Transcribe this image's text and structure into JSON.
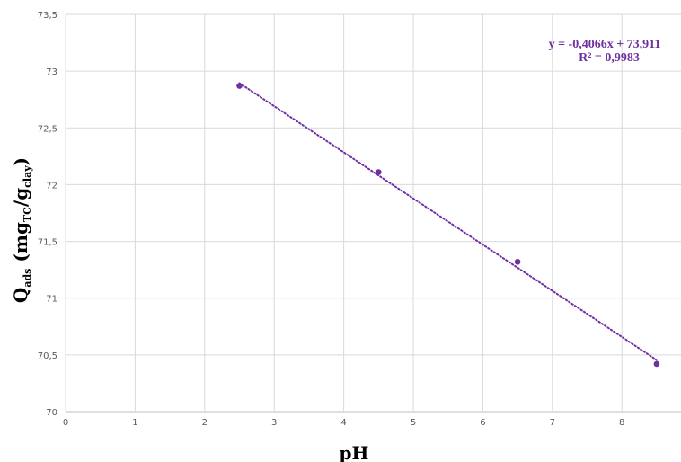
{
  "chart_data": {
    "type": "scatter",
    "title": "",
    "xlabel": "pH",
    "ylabel": {
      "main": "Q",
      "main_sub": "ads",
      "unit_open": " (mg",
      "unit_sub1": "TC",
      "unit_mid": "/g",
      "unit_sub2": "clay",
      "unit_close": ")"
    },
    "xlim": [
      0,
      8.85
    ],
    "ylim": [
      70,
      73.5
    ],
    "x_ticks": [
      "0",
      "1",
      "2",
      "3",
      "4",
      "5",
      "6",
      "7",
      "8"
    ],
    "y_ticks": [
      "70",
      "70,5",
      "71",
      "71,5",
      "72",
      "72,5",
      "73",
      "73,5"
    ],
    "grid": true,
    "series": [
      {
        "x": [
          2.5,
          4.5,
          6.5,
          8.5
        ],
        "y": [
          72.87,
          72.11,
          71.32,
          70.42
        ],
        "color": "#7030a0"
      }
    ],
    "trendline": {
      "type": "linear",
      "style": "dotted",
      "slope": -0.4066,
      "intercept": 73.911,
      "x_range": [
        2.5,
        8.5
      ],
      "equation": "y = -0,4066x + 73,911",
      "r_squared": "R² = 0,9983",
      "color": "#7030a0"
    }
  }
}
